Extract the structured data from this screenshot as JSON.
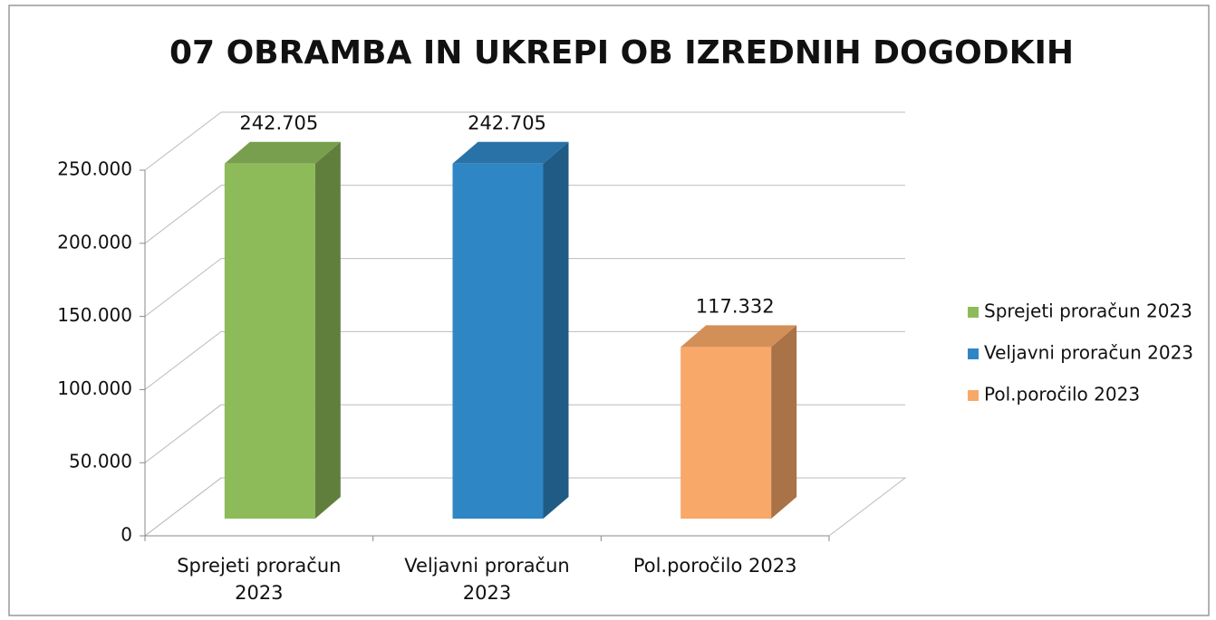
{
  "chart_data": {
    "type": "bar3d",
    "title": "07 OBRAMBA IN UKREPI OB IZREDNIH DOGODKIH",
    "categories": [
      "Sprejeti proračun 2023",
      "Veljavni proračun 2023",
      "Pol.poročilo 2023"
    ],
    "values": [
      242705,
      242705,
      117332
    ],
    "value_labels": [
      "242.705",
      "242.705",
      "117.332"
    ],
    "colors": [
      "#8dbb5a",
      "#2f86c4",
      "#f8a868"
    ],
    "ylim": [
      0,
      250000
    ],
    "yticks": [
      0,
      {
        "value": 50000,
        "label": "50.000"
      },
      {
        "value": 100000,
        "label": "100.000"
      },
      {
        "value": 150000,
        "label": "150.000"
      },
      {
        "value": 200000,
        "label": "200.000"
      },
      {
        "value": 250000,
        "label": "250.000"
      }
    ],
    "grid": true,
    "legend": "right"
  }
}
